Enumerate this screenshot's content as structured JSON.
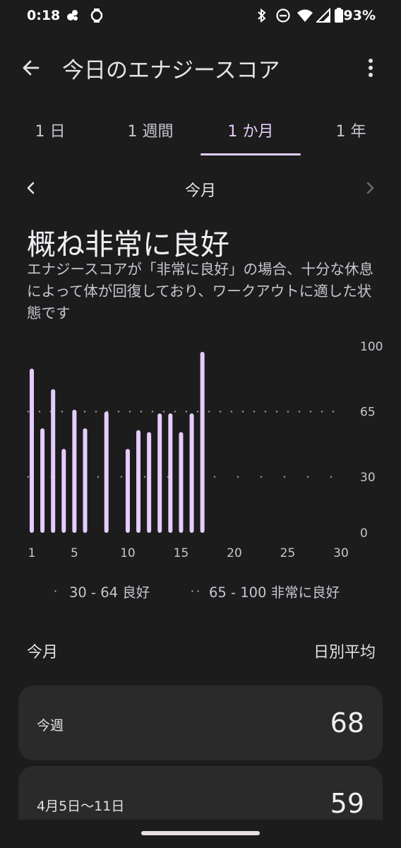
{
  "status_bar": {
    "time": "0:18",
    "battery": "93%",
    "icons": [
      "notification-icon",
      "watch-icon",
      "bluetooth-icon",
      "dnd-icon",
      "wifi-icon",
      "cell-signal-icon",
      "battery-icon"
    ]
  },
  "app_bar": {
    "title": "今日のエナジースコア",
    "back_icon": "arrow-back-icon",
    "menu_icon": "more-vert-icon"
  },
  "tabs": [
    {
      "label": "1 日",
      "active": false
    },
    {
      "label": "1 週間",
      "active": false
    },
    {
      "label": "1 か月",
      "active": true
    },
    {
      "label": "1 年",
      "active": false
    }
  ],
  "period": {
    "label": "今月",
    "prev_icon": "chevron-left-icon",
    "next_icon": "chevron-right-icon"
  },
  "summary": {
    "headline": "概ね非常に良好",
    "description": "エナジースコアが「非常に良好」の場合、十分な休息によって体が回復しており、ワークアウトに適した状態です"
  },
  "chart_data": {
    "type": "bar",
    "title": "",
    "xlabel": "",
    "ylabel": "",
    "x": [
      1,
      2,
      3,
      4,
      5,
      6,
      8,
      10,
      11,
      12,
      13,
      14,
      15,
      16,
      17
    ],
    "values": [
      88,
      56,
      77,
      45,
      66,
      56,
      65,
      45,
      55,
      54,
      64,
      64,
      54,
      64,
      97
    ],
    "xlim": [
      1,
      30
    ],
    "ylim": [
      0,
      100
    ],
    "x_ticks": [
      1,
      5,
      10,
      15,
      20,
      25,
      30
    ],
    "y_ticks": [
      100,
      65,
      30,
      0
    ],
    "reference_lines": [
      65,
      30
    ],
    "bar_color": "#e5cdfb",
    "legend": [
      {
        "dots": "·",
        "label": "30 - 64 良好"
      },
      {
        "dots": "··",
        "label": "65 - 100 非常に良好"
      }
    ]
  },
  "section": {
    "left": "今月",
    "right": "日別平均"
  },
  "cards": [
    {
      "label": "今週",
      "value": "68"
    },
    {
      "label": "4月5日〜11日",
      "value": "59"
    }
  ],
  "colors": {
    "background": "#1c1c1c",
    "accent": "#e5cdfb",
    "card": "#2a2a2a"
  }
}
